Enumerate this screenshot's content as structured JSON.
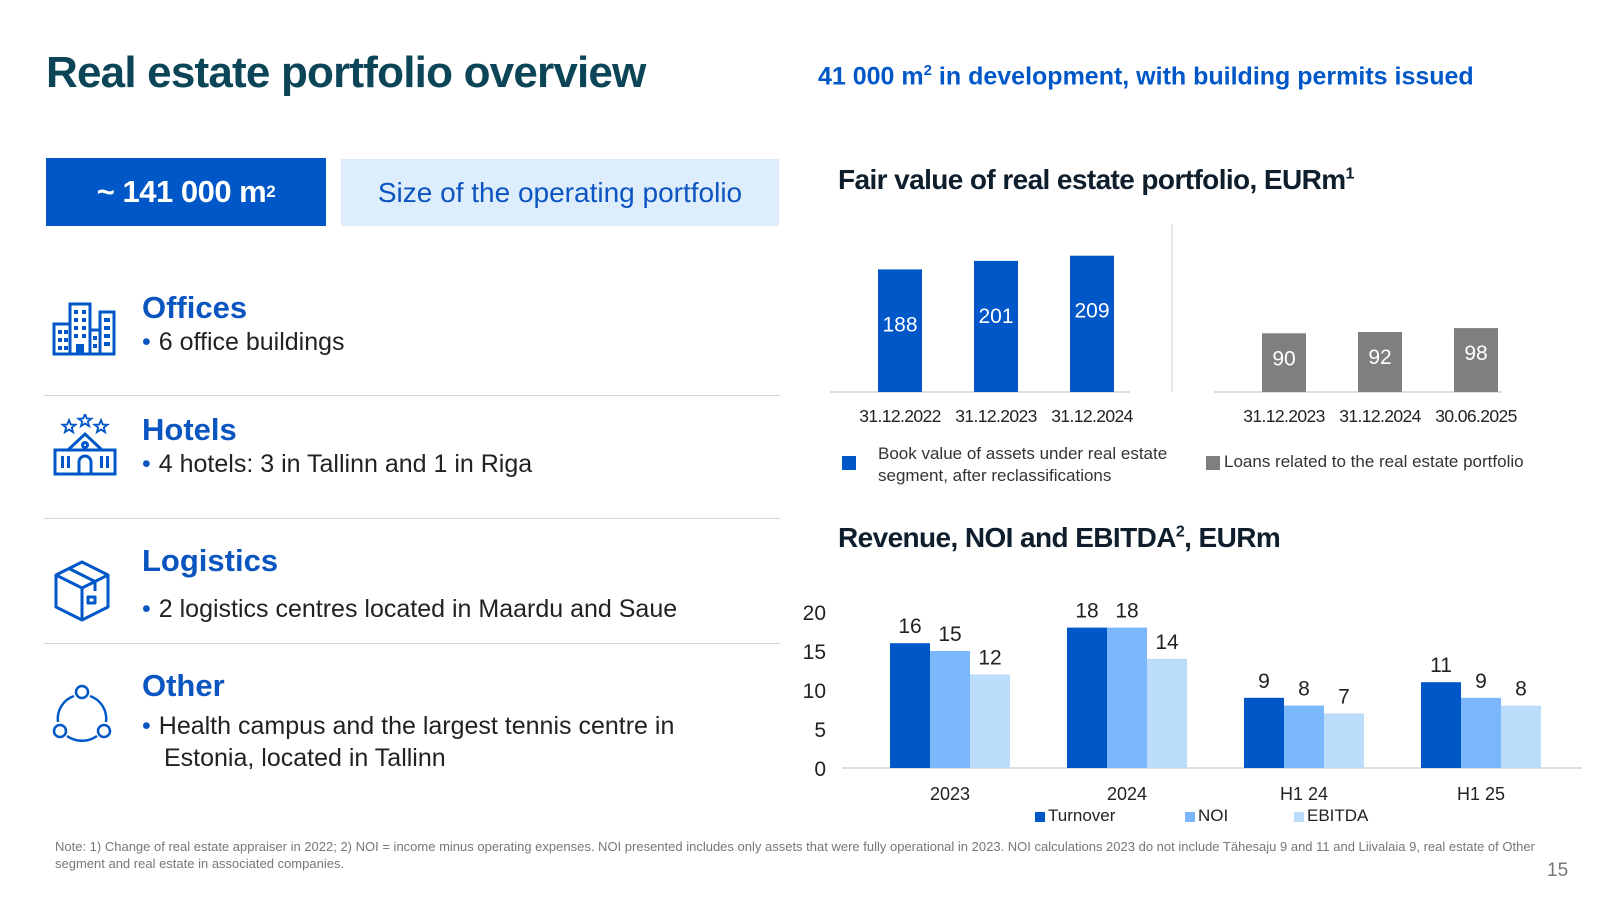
{
  "title": "Real estate portfolio overview",
  "development": {
    "value": "41 000 m",
    "sup": "2",
    "rest": " in development, with building permits issued"
  },
  "portfolio_size": {
    "value": "~ 141 000 m",
    "sup": "2",
    "label": "Size of the operating portfolio"
  },
  "segments": [
    {
      "title": "Offices",
      "bullets": [
        "6 office buildings"
      ],
      "icon": "office-buildings-icon"
    },
    {
      "title": "Hotels",
      "bullets": [
        "4 hotels: 3 in Tallinn and 1 in Riga"
      ],
      "icon": "hotel-icon"
    },
    {
      "title": "Logistics",
      "bullets": [
        "2 logistics centres located in Maardu and Saue"
      ],
      "icon": "box-icon"
    },
    {
      "title": "Other",
      "bullets": [
        "Health campus and the largest tennis centre in Estonia, located in Tallinn"
      ],
      "icon": "network-icon"
    }
  ],
  "bullet_char": "•",
  "chart_data": [
    {
      "type": "bar",
      "title": "Fair value of real estate portfolio, EURm",
      "title_sup": "1",
      "groups": [
        {
          "name": "Book value of assets under real estate segment, after reclassifications",
          "color": "#0057c8",
          "categories": [
            "31.12.2022",
            "31.12.2023",
            "31.12.2024"
          ],
          "values": [
            188,
            201,
            209
          ]
        },
        {
          "name": "Loans related to the real estate portfolio",
          "color": "#7f7f7f",
          "categories": [
            "31.12.2023",
            "31.12.2024",
            "30.06.2025"
          ],
          "values": [
            90,
            92,
            98
          ]
        }
      ],
      "ylim": [
        0,
        230
      ]
    },
    {
      "type": "bar",
      "title": "Revenue, NOI and EBITDA",
      "title_sup": "2",
      "title_suffix": ", EURm",
      "categories": [
        "2023",
        "2024",
        "H1 24",
        "H1 25"
      ],
      "series": [
        {
          "name": "Turnover",
          "color": "#0057c8",
          "values": [
            16,
            18,
            9,
            11
          ]
        },
        {
          "name": "NOI",
          "color": "#7ab8fb",
          "values": [
            15,
            18,
            8,
            9
          ]
        },
        {
          "name": "EBITDA",
          "color": "#bcdcfc",
          "values": [
            12,
            14,
            7,
            8
          ]
        }
      ],
      "yticks": [
        0,
        5,
        10,
        15,
        20
      ],
      "ylim": [
        0,
        20
      ]
    }
  ],
  "note": "Note: 1) Change of real estate appraiser in 2022; 2) NOI = income minus operating expenses. NOI presented includes only assets that were fully operational in 2023. NOI calculations 2023 do not include Tähesaju 9 and 11 and Liivalaia 9, real estate of Other segment and real estate in associated companies.",
  "page_number": "15"
}
